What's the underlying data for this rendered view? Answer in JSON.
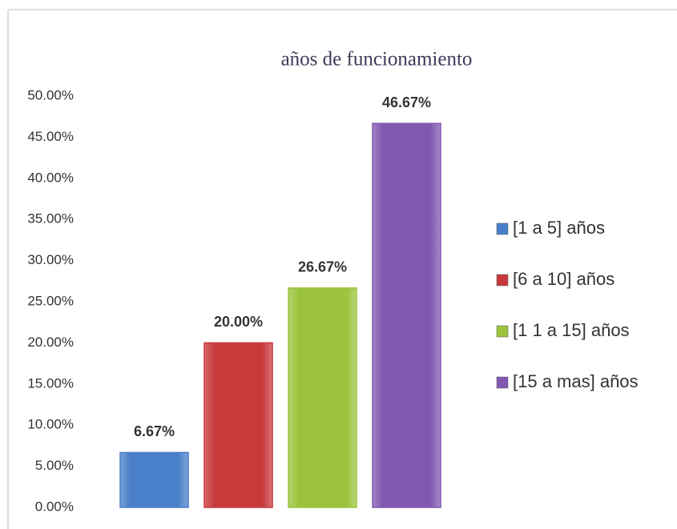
{
  "chart_data": {
    "type": "bar",
    "title": "años de funcionamiento",
    "series": [
      {
        "name": "[1 a 5] años",
        "color": "#4a7fc9",
        "values": [
          6.67
        ],
        "value_labels": [
          "6.67%"
        ]
      },
      {
        "name": "[6 a 10] años",
        "color": "#c8393b",
        "values": [
          20.0
        ],
        "value_labels": [
          "20.00%"
        ]
      },
      {
        "name": "[1 1 a 15] años",
        "color": "#9bc43c",
        "values": [
          26.67
        ],
        "value_labels": [
          "26.67%"
        ]
      },
      {
        "name": "[15 a mas] años",
        "color": "#8259b0",
        "values": [
          46.67
        ],
        "value_labels": [
          "46.67%"
        ]
      }
    ],
    "ylim": [
      0,
      50
    ],
    "yticks": [
      {
        "value": 0,
        "label": "0.00%"
      },
      {
        "value": 5,
        "label": "5.00%"
      },
      {
        "value": 10,
        "label": "10.00%"
      },
      {
        "value": 15,
        "label": "15.00%"
      },
      {
        "value": 20,
        "label": "20.00%"
      },
      {
        "value": 25,
        "label": "25.00%"
      },
      {
        "value": 30,
        "label": "30.00%"
      },
      {
        "value": 35,
        "label": "35.00%"
      },
      {
        "value": 40,
        "label": "40.00%"
      },
      {
        "value": 45,
        "label": "45.00%"
      },
      {
        "value": 50,
        "label": "50.00%"
      }
    ],
    "grid": false,
    "legend": "right"
  }
}
